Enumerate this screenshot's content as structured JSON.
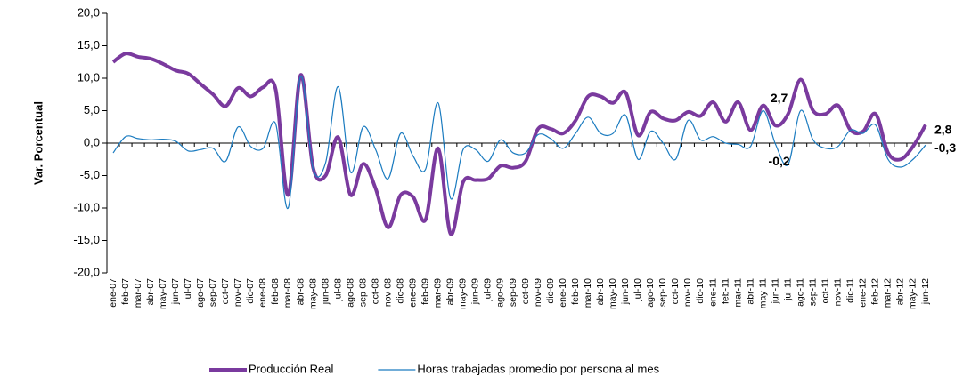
{
  "chart_data": {
    "type": "line",
    "y_label": "Var. Porcentual",
    "categories": [
      "ene-07",
      "feb-07",
      "mar-07",
      "abr-07",
      "may-07",
      "jun-07",
      "jul-07",
      "ago-07",
      "sep-07",
      "oct-07",
      "nov-07",
      "dic-07",
      "ene-08",
      "feb-08",
      "mar-08",
      "abr-08",
      "may-08",
      "jun-08",
      "jul-08",
      "ago-08",
      "sep-08",
      "oct-08",
      "nov-08",
      "dic-08",
      "ene-09",
      "feb-09",
      "mar-09",
      "abr-09",
      "may-09",
      "jun-09",
      "jul-09",
      "ago-09",
      "sep-09",
      "oct-09",
      "nov-09",
      "dic-09",
      "ene-10",
      "feb-10",
      "mar-10",
      "abr-10",
      "may-10",
      "jun-10",
      "jul-10",
      "ago-10",
      "sep-10",
      "oct-10",
      "nov-10",
      "dic-10",
      "ene-11",
      "feb-11",
      "mar-11",
      "abr-11",
      "may-11",
      "jun-11",
      "jul-11",
      "ago-11",
      "sep-11",
      "oct-11",
      "nov-11",
      "dic-11",
      "ene-12",
      "feb-12",
      "mar-12",
      "abr-12",
      "may-12",
      "jun-12"
    ],
    "series": [
      {
        "name": "Producción Real",
        "color": "#7a3a9e",
        "width": 4,
        "values": [
          12.5,
          13.8,
          13.3,
          13.0,
          12.2,
          11.2,
          10.7,
          9.1,
          7.5,
          5.7,
          8.5,
          7.2,
          8.6,
          8.3,
          -8.0,
          10.5,
          -3.8,
          -5.0,
          0.9,
          -8.0,
          -3.2,
          -7.0,
          -13.0,
          -8.0,
          -8.3,
          -11.8,
          -0.8,
          -14.0,
          -6.0,
          -5.7,
          -5.5,
          -3.5,
          -3.8,
          -2.8,
          2.2,
          2.2,
          1.5,
          3.5,
          7.2,
          7.2,
          6.2,
          7.8,
          1.2,
          4.8,
          3.8,
          3.5,
          4.8,
          4.2,
          6.3,
          3.3,
          6.3,
          2.0,
          5.8,
          2.7,
          4.5,
          9.8,
          5.0,
          4.5,
          5.8,
          2.0,
          1.8,
          4.5,
          -1.5,
          -2.5,
          -0.5,
          2.8
        ],
        "value_labels": [
          null,
          null,
          null,
          null,
          null,
          null,
          null,
          null,
          null,
          null,
          null,
          null,
          null,
          null,
          null,
          null,
          null,
          null,
          null,
          null,
          null,
          null,
          null,
          null,
          null,
          null,
          null,
          null,
          null,
          null,
          null,
          null,
          null,
          null,
          null,
          null,
          null,
          null,
          null,
          null,
          null,
          null,
          null,
          null,
          null,
          null,
          null,
          null,
          null,
          null,
          null,
          null,
          null,
          "2,7",
          null,
          null,
          null,
          null,
          null,
          null,
          null,
          null,
          null,
          null,
          null,
          "2,8"
        ]
      },
      {
        "name": "Horas trabajadas promedio por persona al mes",
        "color": "#1c7cc0",
        "width": 1.2,
        "values": [
          -1.5,
          1.0,
          0.7,
          0.5,
          0.6,
          0.3,
          -1.2,
          -1.0,
          -0.8,
          -2.8,
          2.5,
          -0.5,
          -0.8,
          3.0,
          -10.0,
          10.3,
          -4.0,
          -3.0,
          8.7,
          -4.5,
          2.5,
          -1.0,
          -5.5,
          1.5,
          -2.0,
          -4.0,
          6.2,
          -8.5,
          -1.0,
          -1.0,
          -2.8,
          0.5,
          -1.5,
          -1.5,
          1.3,
          0.7,
          -0.8,
          1.5,
          4.0,
          1.5,
          1.5,
          4.3,
          -2.5,
          1.8,
          0.0,
          -2.5,
          3.5,
          0.5,
          1.0,
          0.0,
          -0.2,
          -0.5,
          5.0,
          -0.2,
          -3.3,
          5.0,
          0.5,
          -0.8,
          -0.5,
          2.0,
          1.5,
          2.8,
          -2.5,
          -3.7,
          -2.5,
          -0.3
        ],
        "value_labels": [
          null,
          null,
          null,
          null,
          null,
          null,
          null,
          null,
          null,
          null,
          null,
          null,
          null,
          null,
          null,
          null,
          null,
          null,
          null,
          null,
          null,
          null,
          null,
          null,
          null,
          null,
          null,
          null,
          null,
          null,
          null,
          null,
          null,
          null,
          null,
          null,
          null,
          null,
          null,
          null,
          null,
          null,
          null,
          null,
          null,
          null,
          null,
          null,
          null,
          null,
          null,
          null,
          null,
          "-0,2",
          null,
          null,
          null,
          null,
          null,
          null,
          null,
          null,
          null,
          null,
          null,
          "-0,3"
        ]
      }
    ],
    "ylim": [
      -20,
      20
    ],
    "yticks": [
      {
        "value": -20,
        "label": "-20,0"
      },
      {
        "value": -15,
        "label": "-15,0"
      },
      {
        "value": -10,
        "label": "-10,0"
      },
      {
        "value": -5,
        "label": "-5,0"
      },
      {
        "value": 0,
        "label": "0,0"
      },
      {
        "value": 5,
        "label": "5,0"
      },
      {
        "value": 10,
        "label": "10,0"
      },
      {
        "value": 15,
        "label": "15,0"
      },
      {
        "value": 20,
        "label": "20,0"
      }
    ],
    "grid": false,
    "legend": "bottom"
  }
}
